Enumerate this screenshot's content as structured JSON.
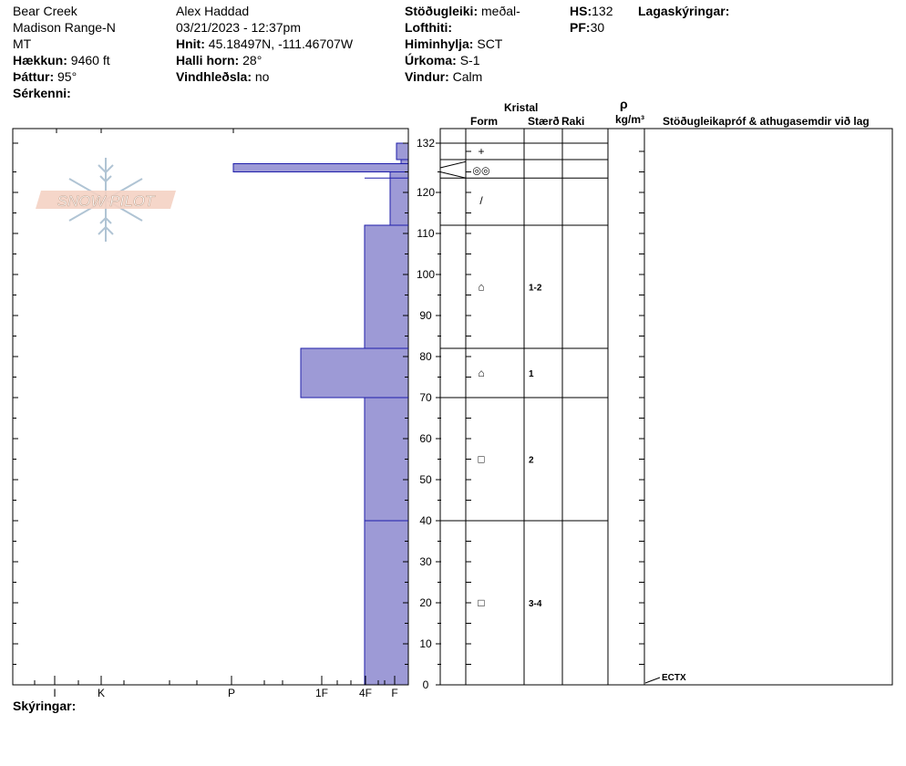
{
  "header": {
    "site": "Bear Creek",
    "range": "Madison Range-N",
    "state": "MT",
    "elevation_label": "Hækkun:",
    "elevation_value": "9460 ft",
    "aspect_label": "Þáttur:",
    "aspect_value": "95°",
    "features_label": "Sérkenni:",
    "observer": "Alex Haddad",
    "datetime": "03/21/2023 - 12:37pm",
    "coords_label": "Hnit:",
    "coords_value": "45.18497N, -111.46707W",
    "slope_label": "Halli horn:",
    "slope_value": "28°",
    "wind_loading_label": "Vindhleðsla:",
    "wind_loading_value": "no",
    "stability_label": "Stöðugleiki:",
    "stability_value": "meðal-",
    "air_temp_label": "Lofthiti:",
    "sky_label": "Himinhylja:",
    "sky_value": "SCT",
    "precip_label": "Úrkoma:",
    "precip_value": "S-1",
    "wind_label": "Vindur:",
    "wind_value": "Calm",
    "hs_label": "HS:",
    "hs_value": "132",
    "pf_label": "PF:",
    "pf_value": "30",
    "layer_notes_label": "Lagaskýringar:"
  },
  "columns": {
    "crystal": "Kristal",
    "form": "Form",
    "size": "Stærð",
    "moisture": "Raki",
    "density_symbol": "ρ",
    "density_unit": "kg/m³",
    "tests": "Stöðugleikapróf & athugasemdir við lag"
  },
  "footer": {
    "notes_label": "Skýringar:"
  },
  "logo_text": "SNOW PILOT",
  "colors": {
    "layer_fill": "#9d9ad6",
    "layer_stroke": "#1e1eaa"
  },
  "chart_data": {
    "type": "bar",
    "orientation": "horizontal",
    "x_hardness_ticks": [
      "I",
      "K",
      "P",
      "1F",
      "4F",
      "F"
    ],
    "y_ticks": [
      0,
      10,
      20,
      30,
      40,
      50,
      60,
      70,
      80,
      90,
      100,
      110,
      120,
      132
    ],
    "ylim": [
      0,
      132
    ],
    "hardness_profile": [
      {
        "bottom": 0,
        "top": 40,
        "hardness": "4F"
      },
      {
        "bottom": 40,
        "top": 70,
        "hardness": "4F"
      },
      {
        "bottom": 70,
        "top": 82,
        "hardness": "1F"
      },
      {
        "bottom": 82,
        "top": 112,
        "hardness": "4F"
      },
      {
        "bottom": 112,
        "top": 125,
        "hardness": "4F+"
      },
      {
        "bottom": 125,
        "top": 127,
        "hardness": "P"
      },
      {
        "bottom": 127,
        "top": 128,
        "hardness": "F+"
      },
      {
        "bottom": 128,
        "top": 132,
        "hardness": "F"
      }
    ],
    "layer_boundaries": [
      40,
      70,
      82,
      112,
      123.5,
      128,
      132
    ],
    "crystals": [
      {
        "depth": 130,
        "form": "+",
        "size": ""
      },
      {
        "depth": 125.5,
        "form": "◎◎",
        "size": ""
      },
      {
        "depth": 118,
        "form": "/",
        "size": ""
      },
      {
        "depth": 97,
        "form": "⌂",
        "size": "1-2"
      },
      {
        "depth": 76,
        "form": "⌂",
        "size": "1"
      },
      {
        "depth": 55,
        "form": "□",
        "size": "2"
      },
      {
        "depth": 20,
        "form": "□",
        "size": "3-4"
      }
    ],
    "tests": [
      {
        "depth": 0,
        "label": "ECTX"
      }
    ]
  }
}
